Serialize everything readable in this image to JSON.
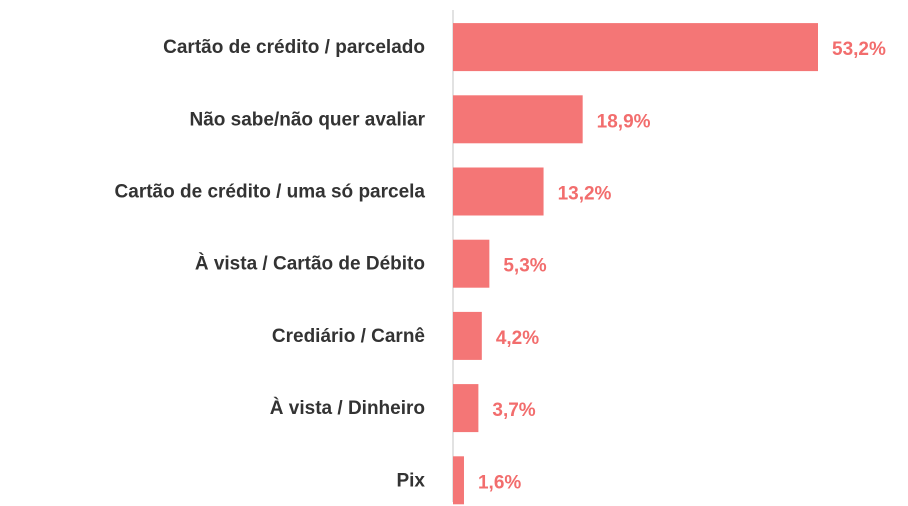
{
  "chart_data": {
    "type": "bar",
    "orientation": "horizontal",
    "categories": [
      "Cartão de crédito / parcelado",
      "Não sabe/não quer avaliar",
      "Cartão de crédito / uma só parcela",
      "À vista / Cartão de Débito",
      "Crediário / Carnê",
      "À vista / Dinheiro",
      "Pix"
    ],
    "values": [
      53.2,
      18.9,
      13.2,
      5.3,
      4.2,
      3.7,
      1.6
    ],
    "value_labels": [
      "53,2%",
      "18,9%",
      "13,2%",
      "5,3%",
      "4,2%",
      "3,7%",
      "1,6%"
    ],
    "color": "#f47676",
    "label_color": "#f26d6d"
  }
}
